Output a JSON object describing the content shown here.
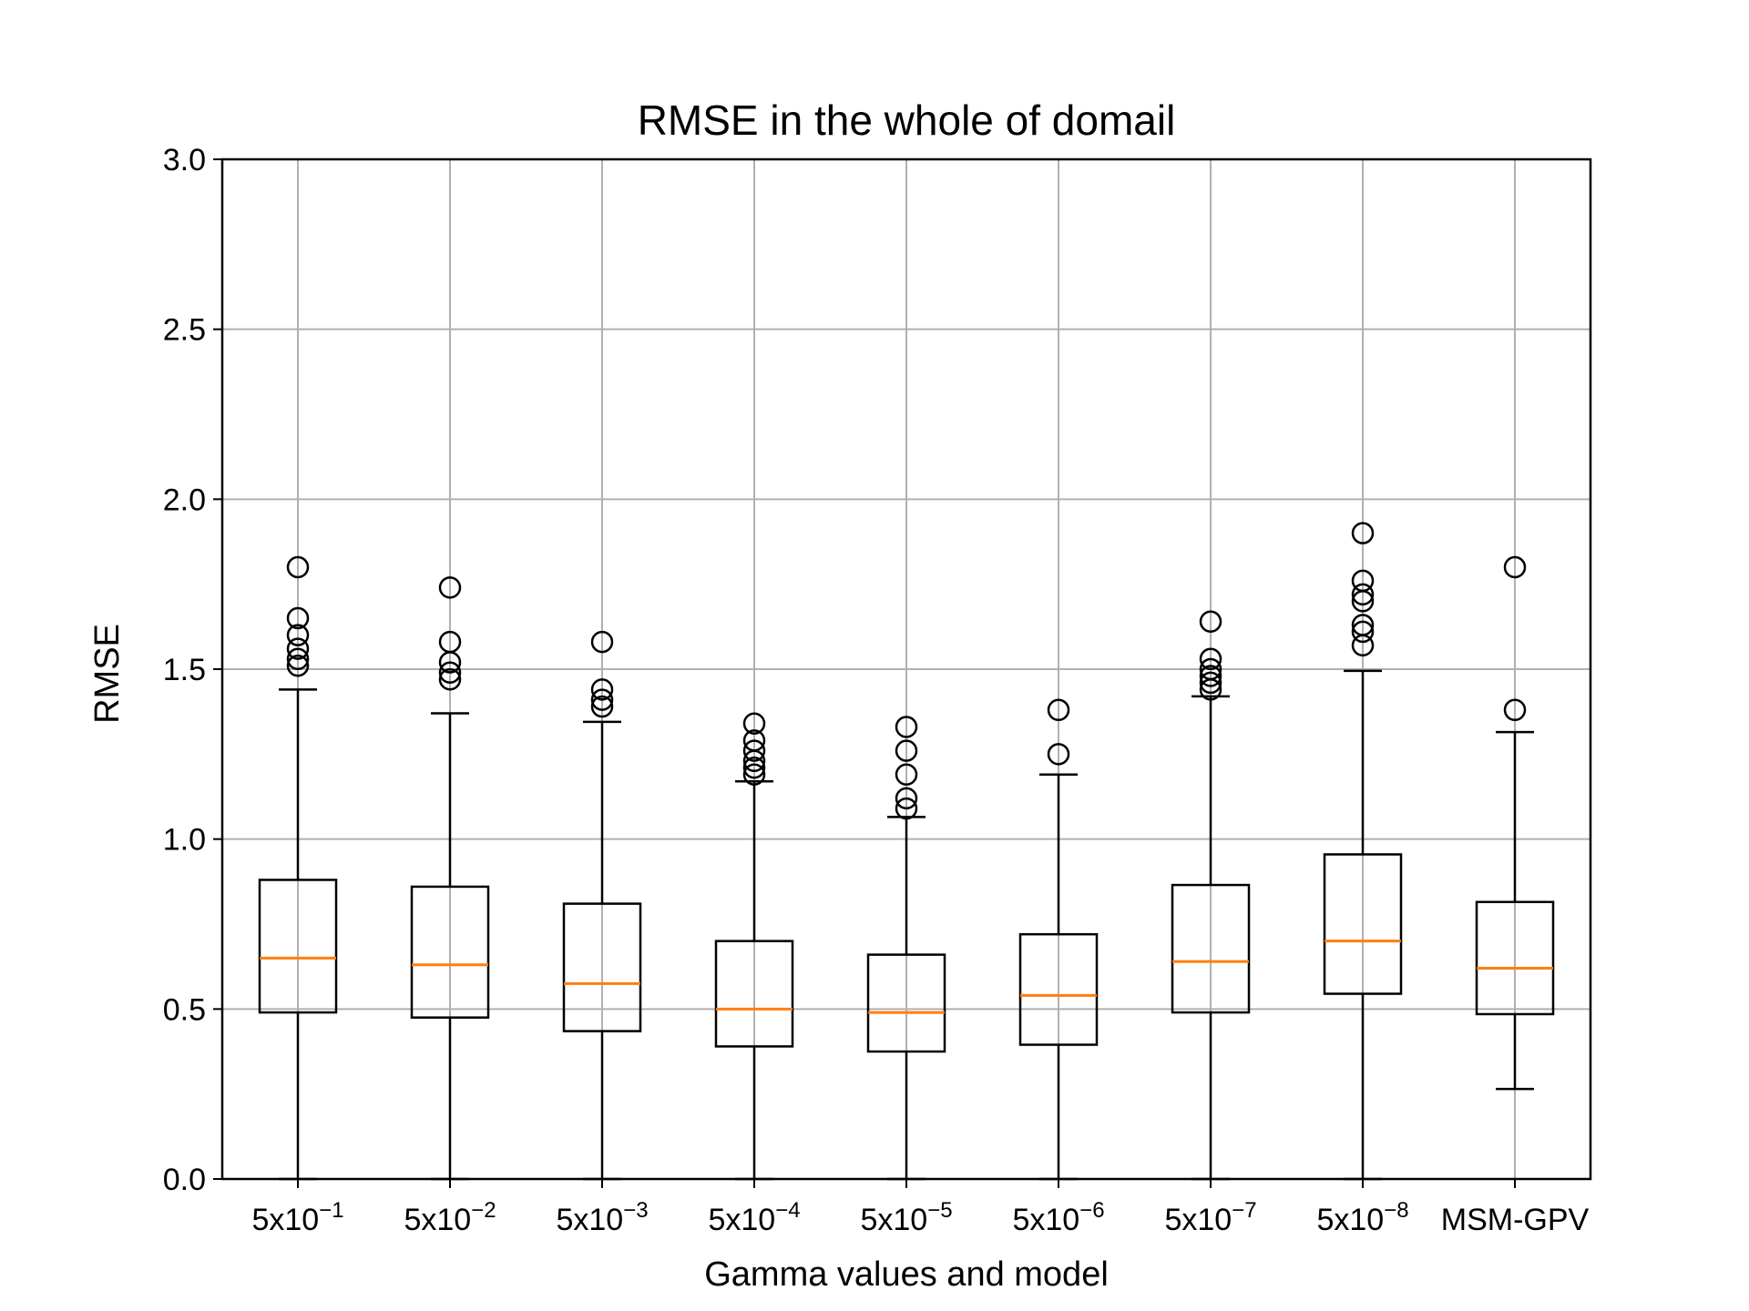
{
  "chart_data": {
    "type": "boxplot",
    "title": "RMSE in the whole of domail",
    "xlabel": "Gamma values and model",
    "ylabel": "RMSE",
    "ylim": [
      0.0,
      3.0
    ],
    "yticks": [
      "0.0",
      "0.5",
      "1.0",
      "1.5",
      "2.0",
      "2.5",
      "3.0"
    ],
    "grid": true,
    "colors": {
      "box": "#000000",
      "median": "#ff7f0e",
      "grid": "#b0b0b0"
    },
    "categories": [
      {
        "base": "5x10",
        "exp": "−1"
      },
      {
        "base": "5x10",
        "exp": "−2"
      },
      {
        "base": "5x10",
        "exp": "−3"
      },
      {
        "base": "5x10",
        "exp": "−4"
      },
      {
        "base": "5x10",
        "exp": "−5"
      },
      {
        "base": "5x10",
        "exp": "−6"
      },
      {
        "base": "5x10",
        "exp": "−7"
      },
      {
        "base": "5x10",
        "exp": "−8"
      },
      {
        "base": "MSM-GPV",
        "exp": ""
      }
    ],
    "boxes": [
      {
        "whisker_low": 0.0,
        "q1": 0.49,
        "median": 0.65,
        "q3": 0.88,
        "whisker_high": 1.44,
        "outliers": [
          1.51,
          1.53,
          1.56,
          1.6,
          1.65,
          1.8
        ]
      },
      {
        "whisker_low": 0.0,
        "q1": 0.475,
        "median": 0.63,
        "q3": 0.86,
        "whisker_high": 1.37,
        "outliers": [
          1.47,
          1.49,
          1.52,
          1.58,
          1.74
        ]
      },
      {
        "whisker_low": 0.0,
        "q1": 0.435,
        "median": 0.575,
        "q3": 0.81,
        "whisker_high": 1.345,
        "outliers": [
          1.39,
          1.41,
          1.44,
          1.58
        ]
      },
      {
        "whisker_low": 0.0,
        "q1": 0.39,
        "median": 0.5,
        "q3": 0.7,
        "whisker_high": 1.17,
        "outliers": [
          1.19,
          1.21,
          1.23,
          1.26,
          1.29,
          1.34
        ]
      },
      {
        "whisker_low": 0.0,
        "q1": 0.375,
        "median": 0.49,
        "q3": 0.66,
        "whisker_high": 1.065,
        "outliers": [
          1.09,
          1.12,
          1.19,
          1.26,
          1.33
        ]
      },
      {
        "whisker_low": 0.0,
        "q1": 0.395,
        "median": 0.54,
        "q3": 0.72,
        "whisker_high": 1.19,
        "outliers": [
          1.25,
          1.38
        ]
      },
      {
        "whisker_low": 0.0,
        "q1": 0.49,
        "median": 0.64,
        "q3": 0.865,
        "whisker_high": 1.42,
        "outliers": [
          1.44,
          1.46,
          1.48,
          1.5,
          1.53,
          1.64
        ]
      },
      {
        "whisker_low": 0.0,
        "q1": 0.545,
        "median": 0.7,
        "q3": 0.955,
        "whisker_high": 1.495,
        "outliers": [
          1.57,
          1.61,
          1.63,
          1.7,
          1.72,
          1.76,
          1.9
        ]
      },
      {
        "whisker_low": 0.265,
        "q1": 0.485,
        "median": 0.62,
        "q3": 0.815,
        "whisker_high": 1.315,
        "outliers": [
          1.38,
          1.8
        ]
      }
    ]
  }
}
